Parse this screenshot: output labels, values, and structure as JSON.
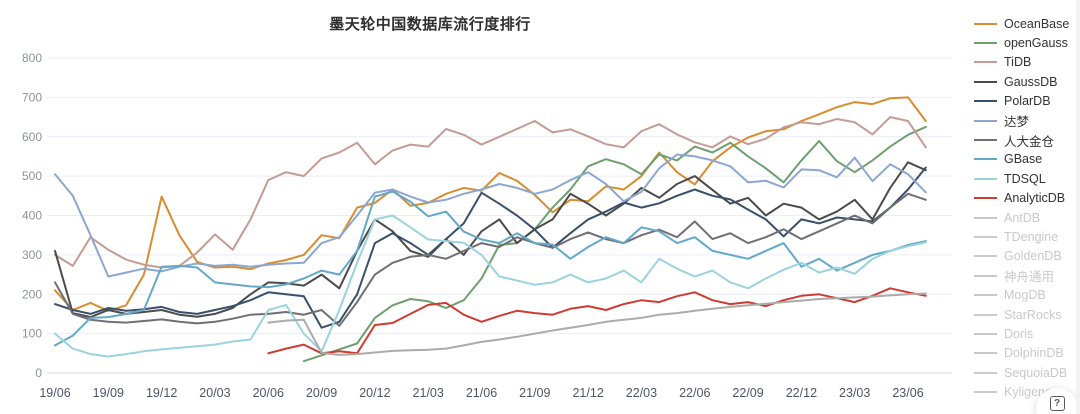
{
  "page": {
    "title": "墨天轮中国数据库流行度排行"
  },
  "help_button": {
    "icon": "?"
  },
  "colors": {
    "grid": "#e9eef5",
    "axis": "#d7dadf",
    "y_label": "#8d939c",
    "x_label": "#4c5668",
    "inactive": "#c9c9c9"
  },
  "legend": {
    "position": "right",
    "items": [
      {
        "label": "OceanBase",
        "color": "#d98c30",
        "active": true
      },
      {
        "label": "openGauss",
        "color": "#6f9e6f",
        "active": true
      },
      {
        "label": "TiDB",
        "color": "#c59b93",
        "active": true
      },
      {
        "label": "GaussDB",
        "color": "#4b4b4b",
        "active": true
      },
      {
        "label": "PolarDB",
        "color": "#39506b",
        "active": true
      },
      {
        "label": "达梦",
        "color": "#8ba7d1",
        "active": true
      },
      {
        "label": "人大金仓",
        "color": "#6e7074",
        "active": true
      },
      {
        "label": "GBase",
        "color": "#64a8c8",
        "active": true
      },
      {
        "label": "TDSQL",
        "color": "#9ad3df",
        "active": true
      },
      {
        "label": "AnalyticDB",
        "color": "#cd3b32",
        "active": true
      },
      {
        "label": "AntDB",
        "color": "#c9c9c9",
        "active": false
      },
      {
        "label": "TDengine",
        "color": "#c9c9c9",
        "active": false
      },
      {
        "label": "GoldenDB",
        "color": "#c9c9c9",
        "active": false
      },
      {
        "label": "神舟通用",
        "color": "#c9c9c9",
        "active": false
      },
      {
        "label": "MogDB",
        "color": "#c9c9c9",
        "active": false
      },
      {
        "label": "StarRocks",
        "color": "#c9c9c9",
        "active": false
      },
      {
        "label": "Doris",
        "color": "#c9c9c9",
        "active": false
      },
      {
        "label": "DolphinDB",
        "color": "#c9c9c9",
        "active": false
      },
      {
        "label": "SequoiaDB",
        "color": "#c9c9c9",
        "active": false
      },
      {
        "label": "Kyligence",
        "color": "#c9c9c9",
        "active": false
      }
    ]
  },
  "chart_data": {
    "type": "line",
    "title": "墨天轮中国数据库流行度排行",
    "xlabel": "",
    "ylabel": "",
    "ylim": [
      0,
      800
    ],
    "y_ticks": [
      0,
      100,
      200,
      300,
      400,
      500,
      600,
      700,
      800
    ],
    "grid": true,
    "legend_position": "right",
    "n_points": 50,
    "tick_interval": 3,
    "x_tick_labels": [
      "19/06",
      "19/09",
      "19/12",
      "20/03",
      "20/06",
      "20/09",
      "20/12",
      "21/03",
      "21/06",
      "21/09",
      "21/12",
      "22/03",
      "22/06",
      "22/09",
      "22/12",
      "23/03",
      "23/06"
    ],
    "series": [
      {
        "name": "OceanBase",
        "color": "#d98c30",
        "values": [
          210,
          160,
          178,
          158,
          172,
          250,
          448,
          350,
          282,
          268,
          270,
          264,
          278,
          287,
          300,
          350,
          342,
          420,
          432,
          466,
          425,
          432,
          455,
          470,
          463,
          508,
          488,
          452,
          408,
          440,
          436,
          474,
          466,
          500,
          560,
          510,
          479,
          538,
          573,
          598,
          614,
          619,
          640,
          657,
          675,
          688,
          683,
          698,
          700,
          640
        ]
      },
      {
        "name": "openGauss",
        "color": "#6f9e6f",
        "values": [
          null,
          null,
          null,
          null,
          null,
          null,
          null,
          null,
          null,
          null,
          null,
          null,
          null,
          null,
          30,
          45,
          60,
          75,
          140,
          172,
          188,
          182,
          165,
          185,
          240,
          325,
          330,
          365,
          420,
          466,
          525,
          543,
          530,
          505,
          555,
          540,
          575,
          560,
          585,
          550,
          520,
          484,
          540,
          589,
          538,
          510,
          540,
          575,
          605,
          625
        ]
      },
      {
        "name": "TiDB",
        "color": "#c59b93",
        "values": [
          300,
          272,
          345,
          313,
          288,
          275,
          268,
          272,
          306,
          352,
          313,
          390,
          490,
          510,
          500,
          545,
          560,
          585,
          530,
          565,
          580,
          575,
          620,
          605,
          580,
          600,
          620,
          640,
          611,
          619,
          601,
          581,
          573,
          614,
          632,
          606,
          586,
          573,
          601,
          581,
          595,
          624,
          637,
          632,
          645,
          637,
          606,
          650,
          640,
          573
        ]
      },
      {
        "name": "GaussDB",
        "color": "#4b4b4b",
        "values": [
          310,
          152,
          142,
          160,
          150,
          155,
          160,
          148,
          143,
          150,
          165,
          200,
          230,
          228,
          222,
          250,
          215,
          310,
          390,
          360,
          310,
          295,
          340,
          300,
          360,
          390,
          330,
          365,
          390,
          455,
          430,
          400,
          430,
          470,
          445,
          480,
          500,
          465,
          430,
          445,
          400,
          430,
          420,
          390,
          410,
          440,
          390,
          470,
          535,
          515
        ]
      },
      {
        "name": "PolarDB",
        "color": "#39506b",
        "values": [
          175,
          160,
          150,
          165,
          158,
          162,
          168,
          155,
          150,
          160,
          170,
          185,
          205,
          200,
          195,
          115,
          130,
          200,
          330,
          355,
          330,
          300,
          340,
          380,
          458,
          430,
          400,
          364,
          318,
          355,
          390,
          410,
          433,
          420,
          431,
          450,
          466,
          450,
          441,
          415,
          390,
          347,
          390,
          380,
          395,
          390,
          385,
          420,
          466,
          522
        ]
      },
      {
        "name": "达梦",
        "color": "#8ba7d1",
        "values": [
          505,
          450,
          350,
          245,
          255,
          265,
          258,
          270,
          278,
          272,
          275,
          270,
          275,
          278,
          280,
          330,
          345,
          400,
          458,
          466,
          448,
          433,
          440,
          455,
          466,
          480,
          470,
          455,
          466,
          490,
          510,
          480,
          436,
          460,
          520,
          555,
          550,
          540,
          525,
          484,
          488,
          471,
          517,
          515,
          497,
          547,
          487,
          530,
          505,
          459
        ]
      },
      {
        "name": "人大金仓",
        "color": "#6e7074",
        "values": [
          230,
          150,
          135,
          130,
          128,
          132,
          136,
          130,
          126,
          130,
          138,
          148,
          150,
          155,
          148,
          160,
          120,
          180,
          250,
          280,
          295,
          300,
          290,
          310,
          330,
          320,
          345,
          330,
          318,
          340,
          357,
          340,
          330,
          350,
          364,
          345,
          385,
          340,
          355,
          330,
          345,
          365,
          340,
          360,
          380,
          400,
          380,
          420,
          455,
          440
        ]
      },
      {
        "name": "GBase",
        "color": "#64a8c8",
        "values": [
          70,
          95,
          140,
          142,
          150,
          160,
          270,
          272,
          268,
          230,
          225,
          220,
          218,
          225,
          240,
          260,
          250,
          310,
          448,
          461,
          435,
          398,
          410,
          359,
          339,
          330,
          355,
          330,
          326,
          290,
          320,
          345,
          330,
          370,
          360,
          330,
          345,
          310,
          300,
          290,
          310,
          330,
          270,
          290,
          260,
          280,
          300,
          310,
          325,
          335
        ]
      },
      {
        "name": "TDSQL",
        "color": "#9ad3df",
        "values": [
          100,
          62,
          48,
          42,
          48,
          55,
          60,
          64,
          68,
          72,
          80,
          85,
          160,
          173,
          100,
          55,
          160,
          280,
          390,
          400,
          370,
          339,
          335,
          331,
          300,
          245,
          235,
          224,
          230,
          250,
          230,
          240,
          260,
          230,
          290,
          265,
          245,
          260,
          230,
          215,
          240,
          262,
          280,
          255,
          268,
          252,
          290,
          310,
          322,
          332
        ]
      },
      {
        "name": "AnalyticDB",
        "color": "#cd3b32",
        "values": [
          null,
          null,
          null,
          null,
          null,
          null,
          null,
          null,
          null,
          null,
          null,
          null,
          50,
          62,
          72,
          50,
          55,
          50,
          122,
          127,
          150,
          173,
          178,
          148,
          130,
          145,
          158,
          152,
          148,
          163,
          170,
          160,
          175,
          185,
          180,
          195,
          205,
          185,
          175,
          180,
          170,
          185,
          196,
          200,
          190,
          180,
          196,
          215,
          205,
          196
        ]
      },
      {
        "name": "AntDB",
        "color": "#ababab",
        "values": [
          null,
          null,
          null,
          null,
          null,
          null,
          null,
          null,
          null,
          null,
          null,
          null,
          128,
          133,
          135,
          51,
          46,
          48,
          52,
          56,
          58,
          59,
          62,
          70,
          79,
          85,
          92,
          100,
          108,
          115,
          122,
          130,
          135,
          140,
          148,
          152,
          158,
          163,
          168,
          172,
          176,
          180,
          184,
          188,
          190,
          192,
          194,
          197,
          200,
          202
        ]
      }
    ]
  }
}
